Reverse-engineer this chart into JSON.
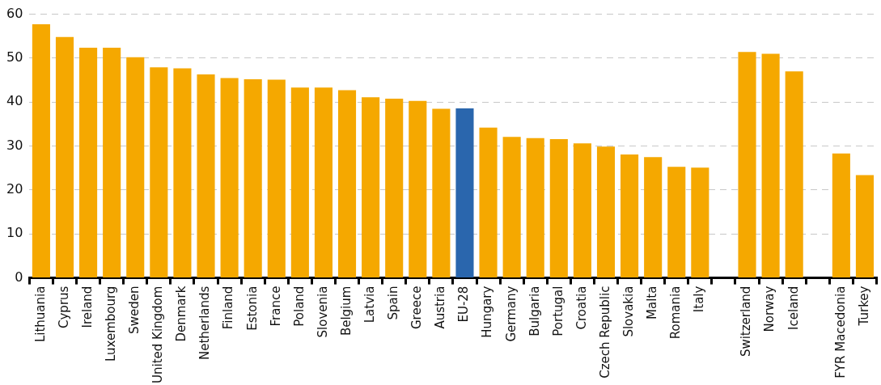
{
  "chart_data": {
    "type": "bar",
    "categories": [
      "Lithuania",
      "Cyprus",
      "Ireland",
      "Luxembourg",
      "Sweden",
      "United Kingdom",
      "Denmark",
      "Netherlands",
      "Finland",
      "Estonia",
      "France",
      "Poland",
      "Slovenia",
      "Belgium",
      "Latvia",
      "Spain",
      "Greece",
      "Austria",
      "EU-28",
      "Hungary",
      "Germany",
      "Bulgaria",
      "Portugal",
      "Croatia",
      "Czech Republic",
      "Slovakia",
      "Malta",
      "Romania",
      "Italy",
      null,
      "Switzerland",
      "Norway",
      "Iceland",
      null,
      "FYR Macedonia",
      "Turkey"
    ],
    "values": [
      57.7,
      54.8,
      52.4,
      52.4,
      50.2,
      47.9,
      47.7,
      46.3,
      45.5,
      45.2,
      45.1,
      43.3,
      43.3,
      42.7,
      41.1,
      40.8,
      40.3,
      38.5,
      38.6,
      34.2,
      32.1,
      31.8,
      31.6,
      30.6,
      29.9,
      28.1,
      27.5,
      25.3,
      25.1,
      null,
      51.4,
      51.0,
      47.0,
      null,
      28.3,
      23.4
    ],
    "colors": [
      "#f5a800",
      "#f5a800",
      "#f5a800",
      "#f5a800",
      "#f5a800",
      "#f5a800",
      "#f5a800",
      "#f5a800",
      "#f5a800",
      "#f5a800",
      "#f5a800",
      "#f5a800",
      "#f5a800",
      "#f5a800",
      "#f5a800",
      "#f5a800",
      "#f5a800",
      "#f5a800",
      "#2a66ad",
      "#f5a800",
      "#f5a800",
      "#f5a800",
      "#f5a800",
      "#f5a800",
      "#f5a800",
      "#f5a800",
      "#f5a800",
      "#f5a800",
      "#f5a800",
      "#f5a800",
      "#f5a800",
      "#f5a800",
      "#f5a800",
      "#f5a800",
      "#f5a800",
      "#f5a800"
    ],
    "ylim": [
      0,
      60
    ],
    "yticks": [
      0,
      10,
      20,
      30,
      40,
      50,
      60
    ],
    "grid": "y",
    "legend": false
  }
}
